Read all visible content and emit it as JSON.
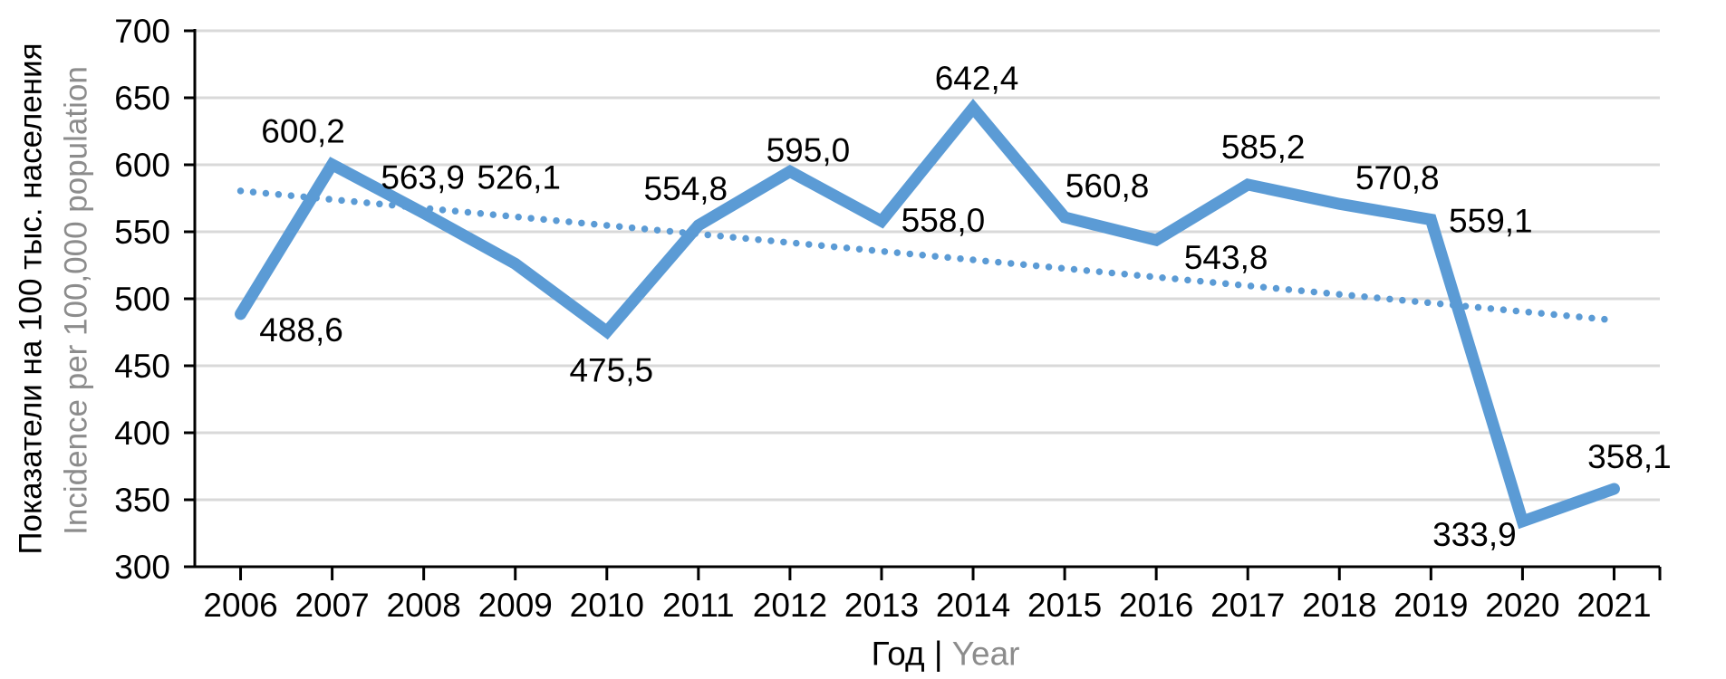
{
  "chart_data": {
    "type": "line",
    "title": "",
    "categories": [
      "2006",
      "2007",
      "2008",
      "2009",
      "2010",
      "2011",
      "2012",
      "2013",
      "2014",
      "2015",
      "2016",
      "2017",
      "2018",
      "2019",
      "2020",
      "2021"
    ],
    "series": [
      {
        "name": "incidence-line",
        "values": [
          488.6,
          600.2,
          563.9,
          526.1,
          475.5,
          554.8,
          595.0,
          558.0,
          642.4,
          560.8,
          543.8,
          585.2,
          570.8,
          559.1,
          333.9,
          358.1
        ],
        "data_labels": [
          "488,6",
          "600,2",
          "563,9",
          "526,1",
          "475,5",
          "554,8",
          "595,0",
          "558,0",
          "642,4",
          "560,8",
          "543,8",
          "585,2",
          "570,8",
          "559,1",
          "333,9",
          "358,1"
        ],
        "label_offsets": [
          [
            67,
            17
          ],
          [
            -32,
            -37
          ],
          [
            -1,
            -40
          ],
          [
            4,
            -96
          ],
          [
            5,
            42
          ],
          [
            -14,
            -41
          ],
          [
            20,
            -24
          ],
          [
            68,
            -1
          ],
          [
            4,
            -33
          ],
          [
            47,
            -35
          ],
          [
            77,
            19
          ],
          [
            17,
            -42
          ],
          [
            64,
            -29
          ],
          [
            66,
            1
          ],
          [
            -53,
            14
          ],
          [
            17,
            -36
          ]
        ]
      },
      {
        "name": "linear-trendline",
        "style": "dotted",
        "start_value": 580.5,
        "end_value": 484.0
      }
    ],
    "y_axis": {
      "title_ru": "Показатели на 100 тыс. населения",
      "title_en": "Incidence per 100,000 population",
      "min": 300,
      "max": 700,
      "step": 50,
      "tick_labels": [
        "300",
        "350",
        "400",
        "450",
        "500",
        "550",
        "600",
        "650",
        "700"
      ]
    },
    "x_axis": {
      "title_ru": "Год",
      "title_separator": " | ",
      "title_en": "Year"
    },
    "grid": true,
    "legend": "none",
    "decimal_separator": ",",
    "colors": {
      "line": "#5B9BD5",
      "trendline": "#5B9BD5",
      "gridline": "#D9D9D9",
      "axis": "#000000",
      "text": "#000000",
      "muted_text": "#8C8C8C",
      "background": "#FFFFFF"
    }
  }
}
